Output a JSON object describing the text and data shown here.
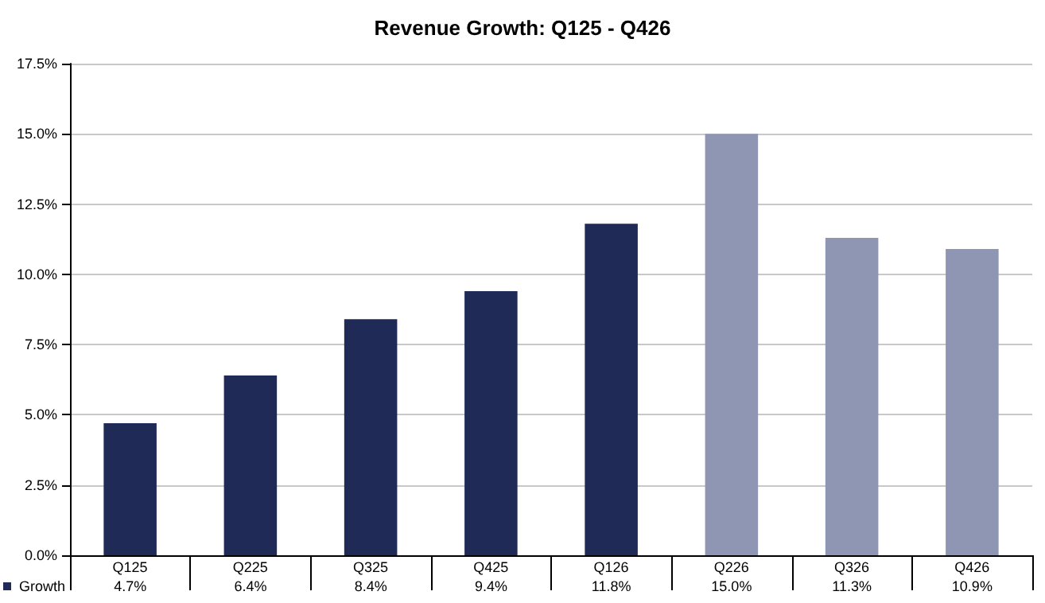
{
  "chart_data": {
    "type": "bar",
    "title": "Revenue Growth: Q125 - Q426",
    "categories": [
      "Q125",
      "Q225",
      "Q325",
      "Q425",
      "Q126",
      "Q226",
      "Q326",
      "Q426"
    ],
    "series": [
      {
        "name": "Growth",
        "color": "#1f2a56",
        "colors": [
          "#1f2a56",
          "#1f2a56",
          "#1f2a56",
          "#1f2a56",
          "#1f2a56",
          "#8e96b3",
          "#8e96b3",
          "#8e96b3"
        ],
        "values": [
          4.7,
          6.4,
          8.4,
          9.4,
          11.8,
          15.0,
          11.3,
          10.9
        ],
        "value_labels": [
          "4.7%",
          "6.4%",
          "8.4%",
          "9.4%",
          "11.8%",
          "15.0%",
          "11.3%",
          "10.9%"
        ]
      }
    ],
    "ylim": [
      0,
      17.5
    ],
    "yticks": [
      {
        "value": 0,
        "label": "0.0%"
      },
      {
        "value": 2.5,
        "label": "2.5%"
      },
      {
        "value": 5,
        "label": "5.0%"
      },
      {
        "value": 7.5,
        "label": "7.5%"
      },
      {
        "value": 10,
        "label": "10.0%"
      },
      {
        "value": 12.5,
        "label": "12.5%"
      },
      {
        "value": 15,
        "label": "15.0%"
      },
      {
        "value": 17.5,
        "label": "17.5%"
      }
    ],
    "grid": "y",
    "legend": "bottom left"
  }
}
